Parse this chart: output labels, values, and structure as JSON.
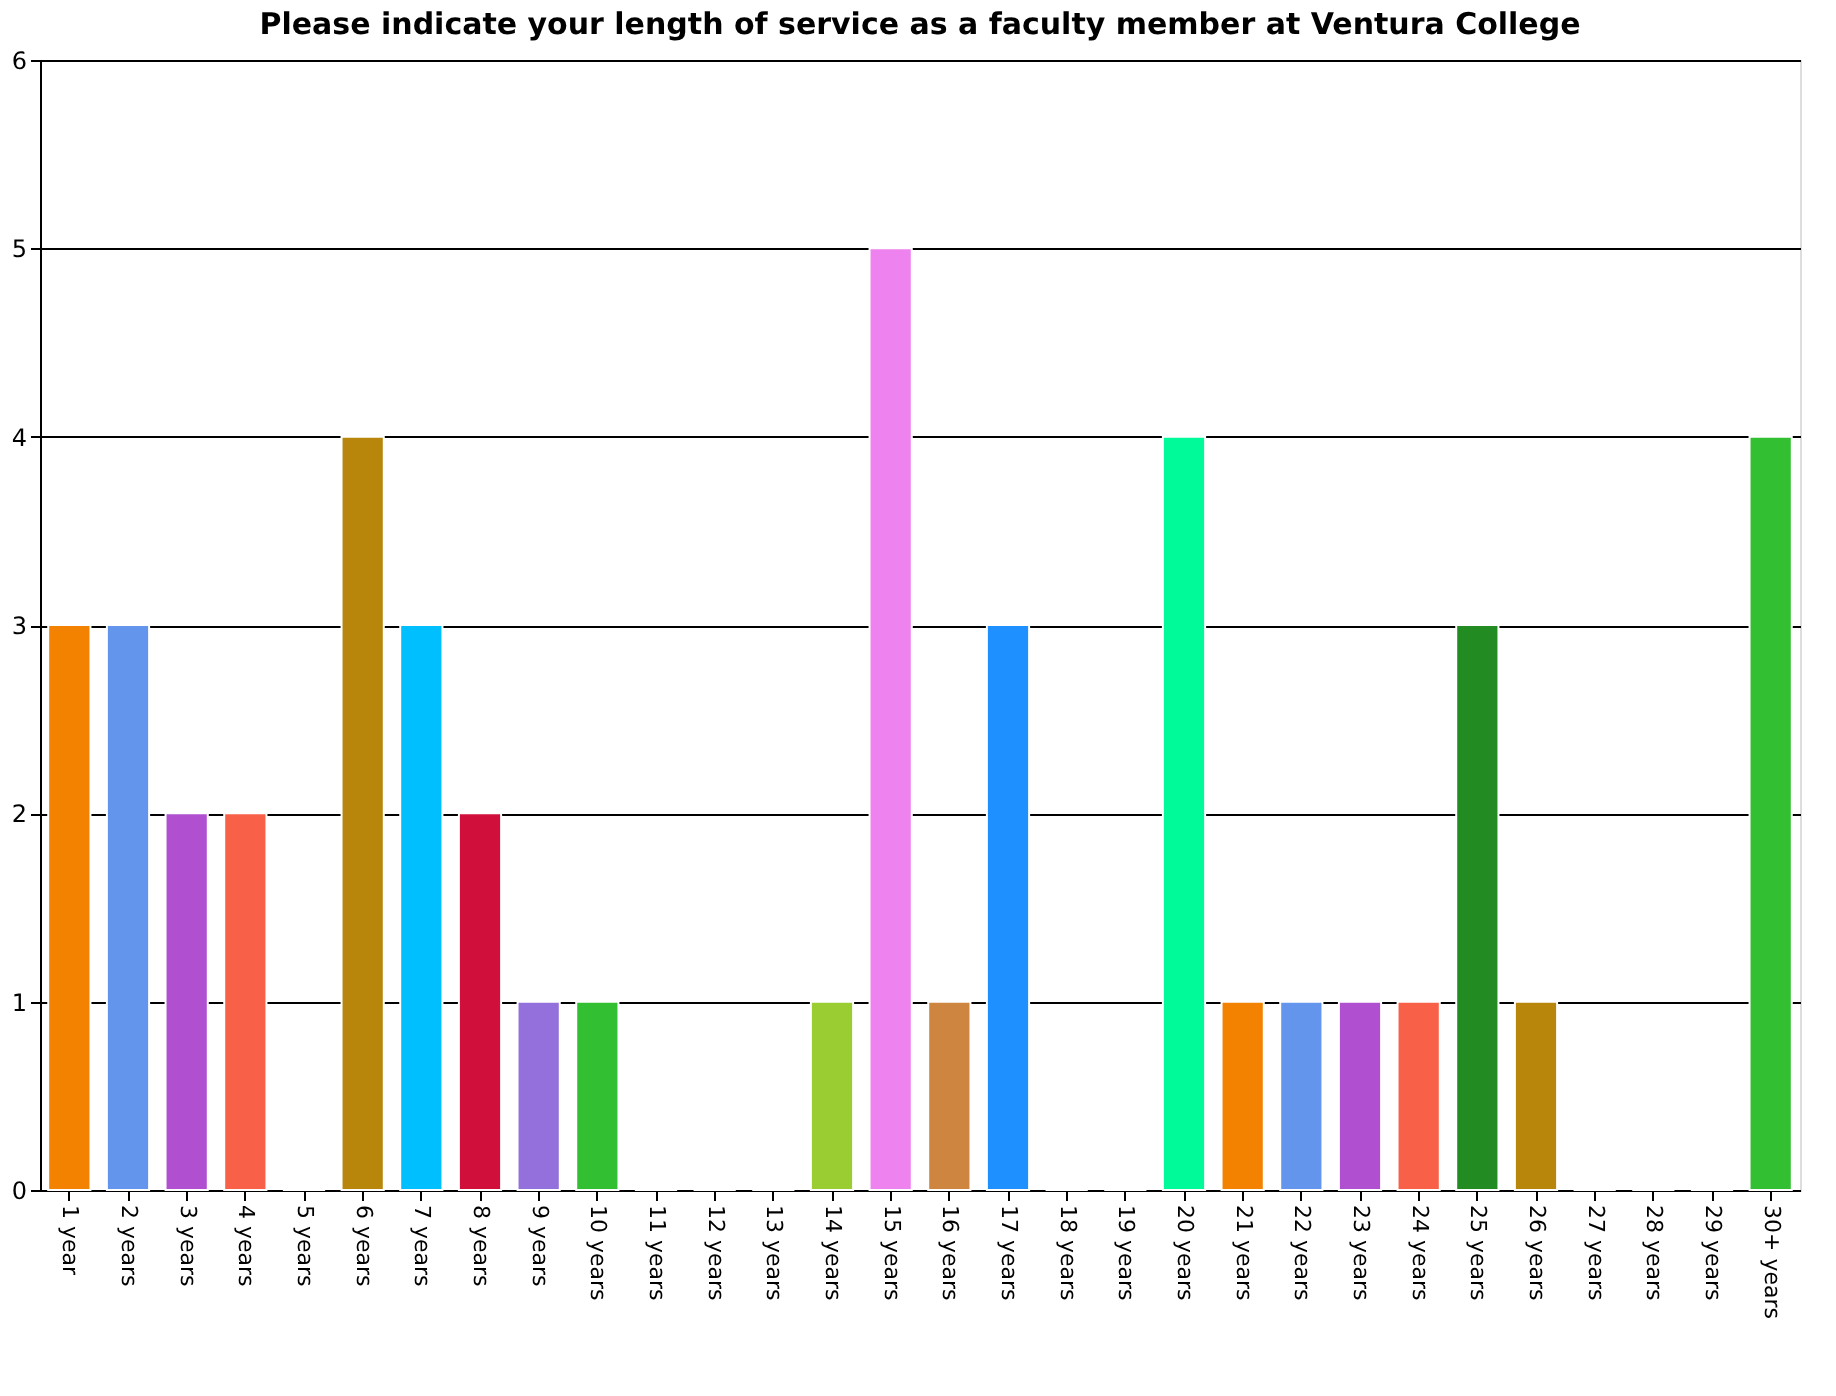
{
  "chart_data": {
    "type": "bar",
    "title": "Please indicate your length of service as a faculty member at Ventura College",
    "categories": [
      "1 year",
      "2 years",
      "3 years",
      "4 years",
      "5 years",
      "6 years",
      "7 years",
      "8 years",
      "9 years",
      "10 years",
      "11 years",
      "12 years",
      "13 years",
      "14 years",
      "15 years",
      "16 years",
      "17 years",
      "18 years",
      "19 years",
      "20 years",
      "21 years",
      "22 years",
      "23 years",
      "24 years",
      "25 years",
      "26 years",
      "27 years",
      "28 years",
      "29 years",
      "30+ years"
    ],
    "values": [
      3,
      3,
      2,
      2,
      0,
      4,
      3,
      2,
      1,
      1,
      0,
      0,
      0,
      1,
      5,
      1,
      3,
      0,
      0,
      4,
      1,
      1,
      1,
      1,
      3,
      1,
      0,
      0,
      0,
      4
    ],
    "colors": [
      "#f28200",
      "#6495ed",
      "#b050d0",
      "#f86048",
      null,
      "#b8860b",
      "#00bfff",
      "#d0103a",
      "#9370db",
      "#32c032",
      null,
      null,
      null,
      "#9acd32",
      "#ee82ee",
      "#cd853f",
      "#1e90ff",
      null,
      null,
      "#00fa9a",
      "#f28200",
      "#6495ed",
      "#b050d0",
      "#f86048",
      "#228b22",
      "#b8860b",
      null,
      null,
      null,
      "#32c032"
    ],
    "ylim": [
      0,
      6
    ],
    "yticks": [
      0,
      1,
      2,
      3,
      4,
      5,
      6
    ],
    "grid": "y"
  }
}
